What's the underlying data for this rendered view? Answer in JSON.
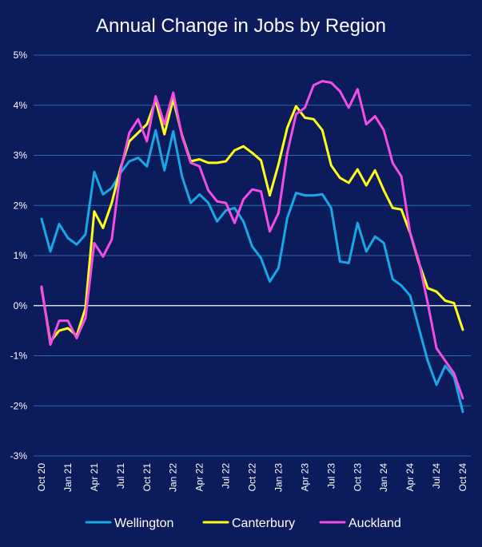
{
  "chart_data": {
    "type": "line",
    "title": "Annual Change in Jobs by Region",
    "xlabel": "",
    "ylabel": "",
    "ylim": [
      -3,
      5
    ],
    "yticks": [
      5,
      4,
      3,
      2,
      1,
      0,
      -1,
      -2,
      -3
    ],
    "ytick_labels": [
      "5%",
      "4%",
      "3%",
      "2%",
      "1%",
      "0%",
      "-1%",
      "-2%",
      "-3%"
    ],
    "grid": true,
    "legend_position": "bottom",
    "background_color": "#0b1b5c",
    "x": [
      "2020-10",
      "2020-11",
      "2020-12",
      "2021-01",
      "2021-02",
      "2021-03",
      "2021-04",
      "2021-05",
      "2021-06",
      "2021-07",
      "2021-08",
      "2021-09",
      "2021-10",
      "2021-11",
      "2021-12",
      "2022-01",
      "2022-02",
      "2022-03",
      "2022-04",
      "2022-05",
      "2022-06",
      "2022-07",
      "2022-08",
      "2022-09",
      "2022-10",
      "2022-11",
      "2022-12",
      "2023-01",
      "2023-02",
      "2023-03",
      "2023-04",
      "2023-05",
      "2023-06",
      "2023-07",
      "2023-08",
      "2023-09",
      "2023-10",
      "2023-11",
      "2023-12",
      "2024-01",
      "2024-02",
      "2024-03",
      "2024-04",
      "2024-05",
      "2024-06",
      "2024-07",
      "2024-08",
      "2024-09",
      "2024-10"
    ],
    "x_tick_labels": [
      "Oct 20",
      "Jan 21",
      "Apr 21",
      "Jul 21",
      "Oct 21",
      "Jan 22",
      "Apr 22",
      "Jul 22",
      "Oct 22",
      "Jan 23",
      "Apr 23",
      "Jul 23",
      "Oct 23",
      "Jan 24",
      "Apr 24",
      "Jul 24",
      "Oct 24"
    ],
    "series": [
      {
        "name": "Wellington",
        "color": "#19a7e6",
        "values": [
          1.73,
          1.08,
          1.63,
          1.35,
          1.22,
          1.42,
          2.67,
          2.22,
          2.35,
          2.65,
          2.88,
          2.95,
          2.78,
          3.5,
          2.7,
          3.48,
          2.58,
          2.05,
          2.22,
          2.05,
          1.68,
          1.9,
          1.95,
          1.68,
          1.18,
          0.95,
          0.48,
          0.75,
          1.75,
          2.25,
          2.2,
          2.2,
          2.22,
          1.95,
          0.88,
          0.85,
          1.65,
          1.08,
          1.38,
          1.25,
          0.53,
          0.4,
          0.2,
          -0.45,
          -1.1,
          -1.58,
          -1.2,
          -1.42,
          -2.12
        ]
      },
      {
        "name": "Canterbury",
        "color": "#ffff1a",
        "values": [
          0.35,
          -0.72,
          -0.5,
          -0.45,
          -0.6,
          -0.05,
          1.88,
          1.55,
          2.05,
          2.75,
          3.28,
          3.45,
          3.62,
          4.1,
          3.42,
          4.12,
          3.4,
          2.88,
          2.92,
          2.85,
          2.85,
          2.88,
          3.1,
          3.18,
          3.05,
          2.9,
          2.2,
          2.82,
          3.55,
          3.98,
          3.75,
          3.72,
          3.5,
          2.8,
          2.55,
          2.45,
          2.72,
          2.4,
          2.7,
          2.3,
          1.95,
          1.92,
          1.45,
          0.85,
          0.35,
          0.28,
          0.1,
          0.05,
          -0.48
        ]
      },
      {
        "name": "Auckland",
        "color": "#f24ee6",
        "values": [
          0.38,
          -0.78,
          -0.3,
          -0.3,
          -0.65,
          -0.25,
          1.25,
          0.98,
          1.32,
          2.7,
          3.45,
          3.72,
          3.28,
          4.18,
          3.62,
          4.25,
          3.38,
          2.85,
          2.78,
          2.3,
          2.08,
          2.05,
          1.65,
          2.12,
          2.32,
          2.28,
          1.48,
          1.85,
          3.05,
          3.82,
          3.95,
          4.4,
          4.48,
          4.45,
          4.28,
          3.95,
          4.32,
          3.62,
          3.78,
          3.5,
          2.85,
          2.58,
          1.45,
          0.88,
          0.05,
          -0.85,
          -1.1,
          -1.35,
          -1.85
        ]
      }
    ]
  }
}
